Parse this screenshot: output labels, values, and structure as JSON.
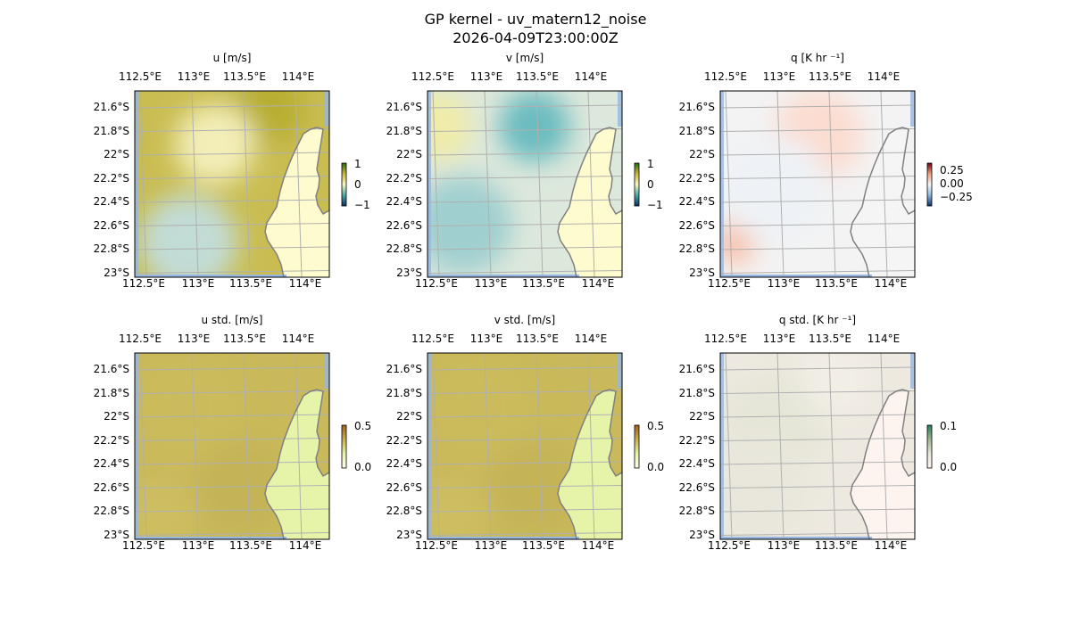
{
  "figure": {
    "title": "GP kernel - uv_matern12_noise",
    "subtitle": "2026-04-09T23:00:00Z"
  },
  "chart_data": [
    {
      "type": "heatmap",
      "title": "u [m/s]",
      "colorbar": {
        "ticks": [
          "1",
          "0",
          "−1"
        ],
        "range": [
          -1,
          1
        ],
        "colors": [
          "#08306b",
          "#4aa8a0",
          "#f7f7c0",
          "#c8b840",
          "#2a6a10"
        ]
      },
      "ocean": "#c9bd52",
      "land": "#fefcce",
      "blobs": [
        {
          "c": "#c2dcd6"
        },
        {
          "c": "#b8ae30"
        },
        {
          "c": "#f3eeb8"
        }
      ]
    },
    {
      "type": "heatmap",
      "title": "v [m/s]",
      "colorbar": {
        "ticks": [
          "1",
          "0",
          "−1"
        ],
        "range": [
          -1,
          1
        ],
        "colors": [
          "#08306b",
          "#4aa8a0",
          "#f7f7c0",
          "#c8b840",
          "#2a6a10"
        ]
      },
      "ocean": "#dde8dc",
      "land": "#fefcce",
      "blobs": [
        {
          "c": "#9fcfcf"
        },
        {
          "c": "#6bbcc0"
        },
        {
          "c": "#f0eca8"
        }
      ]
    },
    {
      "type": "heatmap",
      "title": "q [K hr ⁻¹]",
      "colorbar": {
        "ticks": [
          "0.25",
          "0.00",
          "−0.25"
        ],
        "range": [
          -0.35,
          0.35
        ],
        "colors": [
          "#0a3070",
          "#8cb8e0",
          "#f7f7f7",
          "#f0a080",
          "#700010"
        ]
      },
      "ocean": "#f3f3f3",
      "land": "#f5f5f5",
      "blobs": [
        {
          "c": "#f8c0a8"
        },
        {
          "c": "#fcdcd0"
        },
        {
          "c": "#eef2f6"
        }
      ]
    },
    {
      "type": "heatmap",
      "title": "u std. [m/s]",
      "colorbar": {
        "ticks": [
          "0.5",
          "0.0"
        ],
        "range": [
          0,
          0.6
        ],
        "colors": [
          "#fffff0",
          "#e6f4a8",
          "#c8b050",
          "#a06020"
        ]
      },
      "ocean": "#c9b95a",
      "land": "#e6f4aa",
      "blobs": [
        {
          "c": "#cbbb5c"
        },
        {
          "c": "#c4b456"
        },
        {
          "c": "#cebe60"
        }
      ]
    },
    {
      "type": "heatmap",
      "title": "v std. [m/s]",
      "colorbar": {
        "ticks": [
          "0.5",
          "0.0"
        ],
        "range": [
          0,
          0.6
        ],
        "colors": [
          "#fffff0",
          "#e6f4a8",
          "#c8b050",
          "#a06020"
        ]
      },
      "ocean": "#c9b95a",
      "land": "#e6f4aa",
      "blobs": [
        {
          "c": "#cbbb5c"
        },
        {
          "c": "#c4b456"
        },
        {
          "c": "#cebe60"
        }
      ]
    },
    {
      "type": "heatmap",
      "title": "q std. [K hr ⁻¹]",
      "colorbar": {
        "ticks": [
          "0.1",
          "0.0"
        ],
        "range": [
          0,
          0.12
        ],
        "colors": [
          "#fff4f0",
          "#e8e8dc",
          "#a0b890",
          "#208060"
        ]
      },
      "ocean": "#ede9e0",
      "land": "#fdf4f0",
      "blobs": [
        {
          "c": "#e6e6d8"
        },
        {
          "c": "#f2eee6"
        },
        {
          "c": "#e9e7dc"
        }
      ]
    }
  ],
  "axes": {
    "xticks": [
      "112.5°E",
      "113°E",
      "113.5°E",
      "114°E"
    ],
    "yticks": [
      "21.6°S",
      "21.8°S",
      "22°S",
      "22.2°S",
      "22.4°S",
      "22.6°S",
      "22.8°S",
      "23°S"
    ]
  },
  "colors": {
    "sea_edge": "#97b6e0",
    "grid": "#b0b0b0",
    "coast": "#808080"
  }
}
